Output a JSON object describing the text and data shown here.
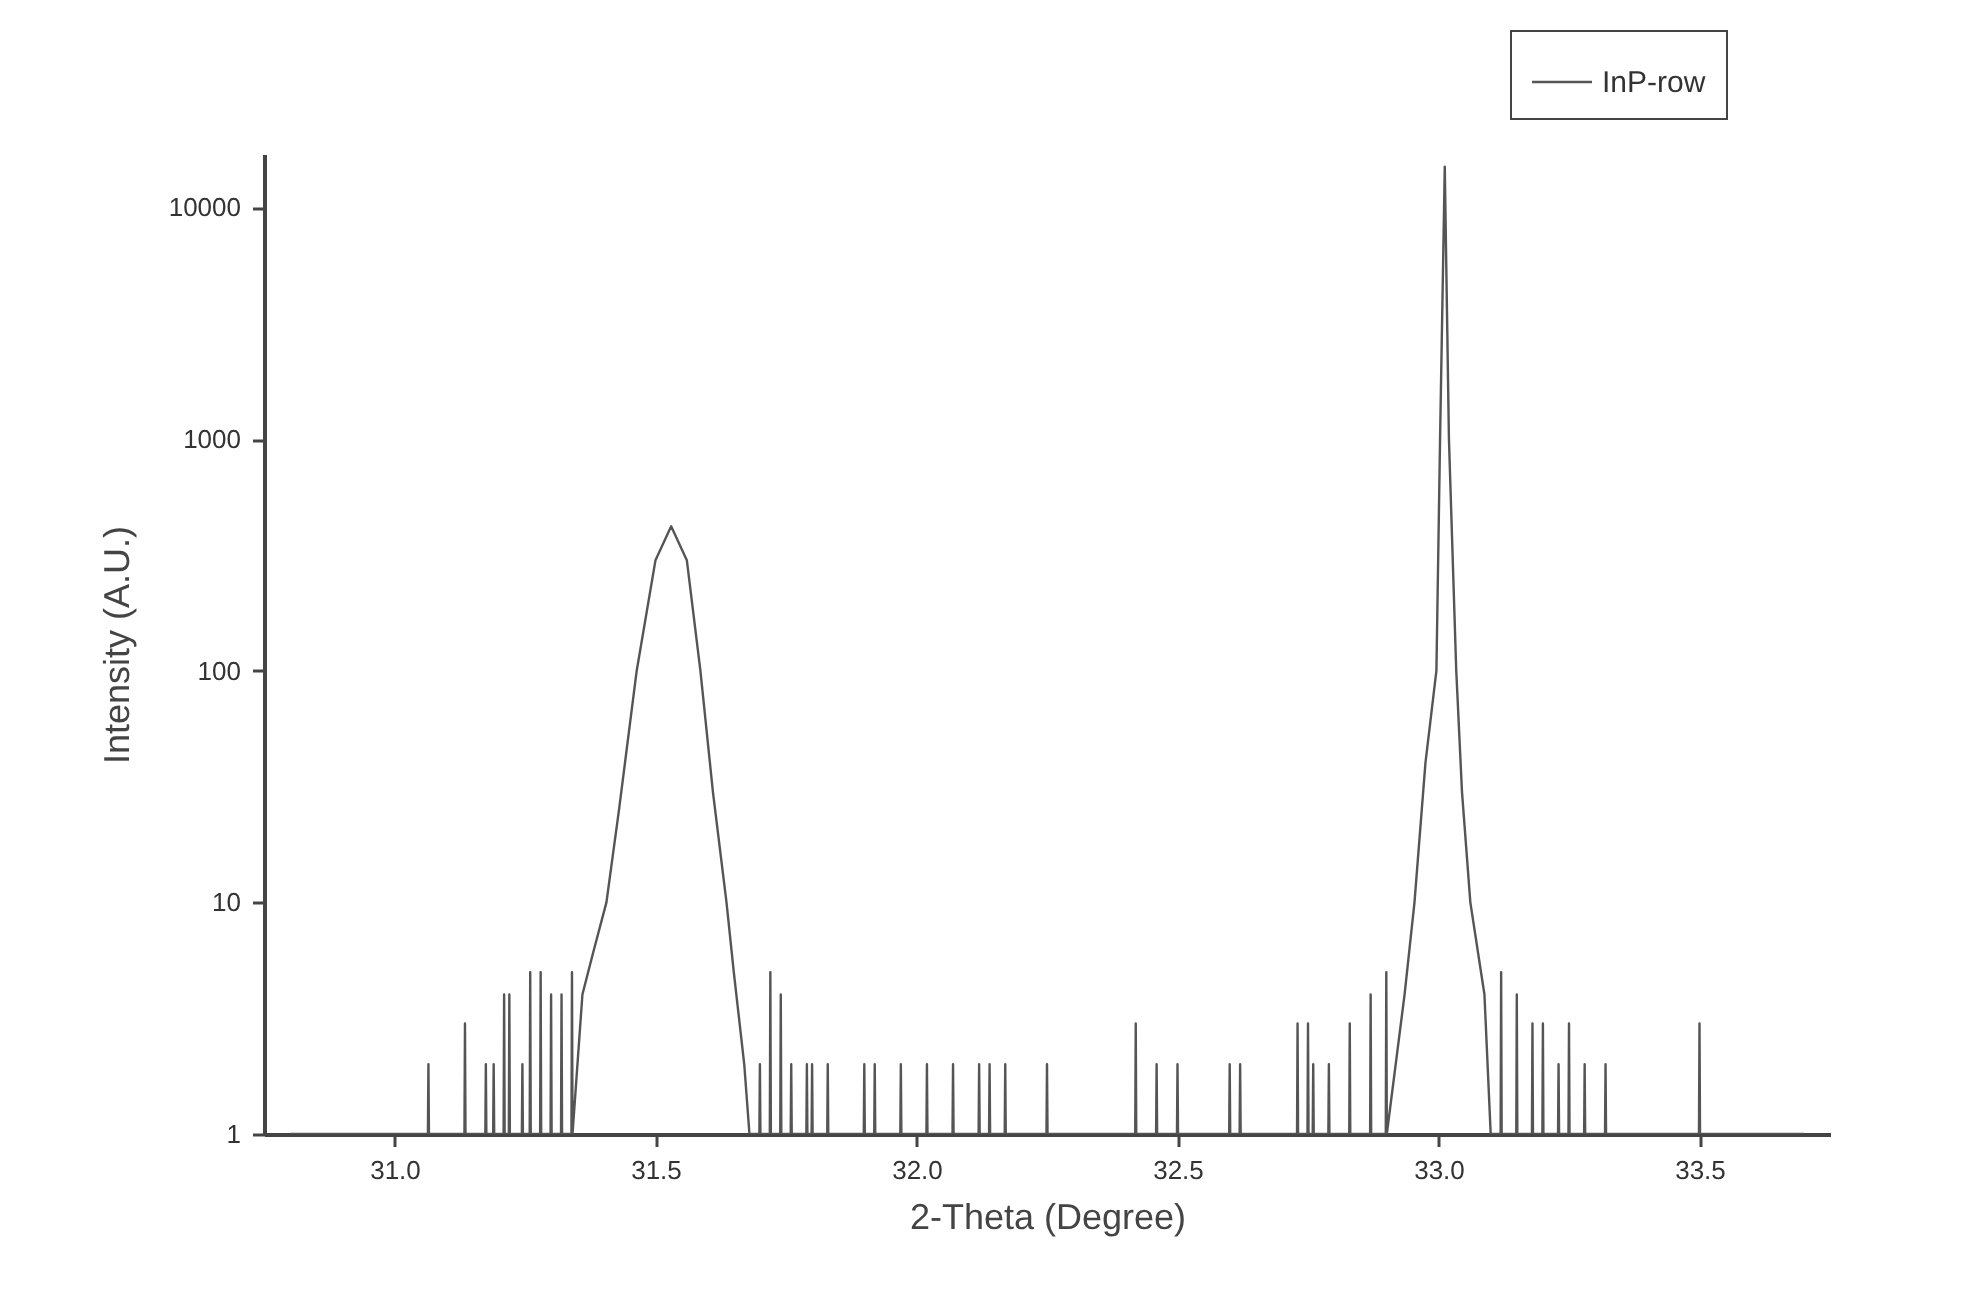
{
  "chart_data": {
    "type": "line",
    "xlabel": "2-Theta (Degree)",
    "ylabel": "Intensity (A.U.)",
    "log": "y",
    "grid": false,
    "legend": "top right",
    "line_style": "solid",
    "marker": "none",
    "xlim": [
      30.75,
      33.75
    ],
    "xticks": [
      {
        "value": 31,
        "label": "31.0"
      },
      31.5,
      {
        "value": 32,
        "label": "32.0"
      },
      32.5,
      {
        "value": 33,
        "label": "33.0"
      },
      33.5
    ],
    "ylim": [
      1,
      17000
    ],
    "yticks": [
      1,
      10,
      100,
      1000,
      10000
    ],
    "x": [
      30.8,
      31.064,
      31.065,
      31.066,
      31.134,
      31.135,
      31.136,
      31.174,
      31.175,
      31.176,
      31.189,
      31.19,
      31.191,
      31.209,
      31.21,
      31.211,
      31.219,
      31.22,
      31.221,
      31.244,
      31.245,
      31.246,
      31.259,
      31.26,
      31.261,
      31.279,
      31.28,
      31.281,
      31.299,
      31.3,
      31.301,
      31.319,
      31.32,
      31.321,
      31.339,
      31.34,
      31.341,
      31.36,
      31.38,
      31.406,
      31.43,
      31.464,
      31.5,
      31.53,
      31.56,
      31.586,
      31.61,
      31.636,
      31.65,
      31.67,
      31.68,
      31.699,
      31.7,
      31.701,
      31.719,
      31.72,
      31.721,
      31.739,
      31.74,
      31.741,
      31.759,
      31.76,
      31.761,
      31.789,
      31.79,
      31.791,
      31.799,
      31.8,
      31.801,
      31.829,
      31.83,
      31.831,
      31.899,
      31.9,
      31.901,
      31.919,
      31.92,
      31.921,
      31.969,
      31.97,
      31.971,
      32.019,
      32.02,
      32.021,
      32.069,
      32.07,
      32.071,
      32.119,
      32.12,
      32.121,
      32.139,
      32.14,
      32.141,
      32.169,
      32.17,
      32.171,
      32.249,
      32.25,
      32.251,
      32.419,
      32.42,
      32.421,
      32.459,
      32.46,
      32.461,
      32.499,
      32.5,
      32.501,
      32.599,
      32.6,
      32.601,
      32.619,
      32.62,
      32.621,
      32.729,
      32.73,
      32.731,
      32.749,
      32.75,
      32.751,
      32.759,
      32.76,
      32.761,
      32.789,
      32.79,
      32.791,
      32.829,
      32.83,
      32.831,
      32.869,
      32.87,
      32.871,
      32.899,
      32.9,
      32.901,
      32.935,
      32.954,
      32.975,
      32.996,
      33.003,
      33.012,
      33.02,
      33.034,
      33.045,
      33.061,
      33.088,
      33.1,
      33.119,
      33.12,
      33.121,
      33.149,
      33.15,
      33.151,
      33.179,
      33.18,
      33.181,
      33.199,
      33.2,
      33.201,
      33.229,
      33.23,
      33.231,
      33.249,
      33.25,
      33.251,
      33.279,
      33.28,
      33.281,
      33.319,
      33.32,
      33.321,
      33.499,
      33.5,
      33.501,
      33.7
    ],
    "series": [
      {
        "name": "InP-row",
        "color": "#555555",
        "values": [
          1,
          1,
          2,
          1,
          1,
          3,
          1,
          1,
          2,
          1,
          1,
          2,
          1,
          1,
          4,
          1,
          1,
          4,
          1,
          1,
          2,
          1,
          1,
          5,
          1,
          1,
          5,
          1,
          1,
          4,
          1,
          1,
          4,
          1,
          1,
          5,
          1,
          4,
          6,
          10,
          25,
          100,
          300,
          420,
          300,
          100,
          30,
          10,
          5,
          2,
          1,
          1,
          2,
          1,
          1,
          5,
          1,
          1,
          4,
          1,
          1,
          2,
          1,
          1,
          2,
          1,
          1,
          2,
          1,
          1,
          2,
          1,
          1,
          2,
          1,
          1,
          2,
          1,
          1,
          2,
          1,
          1,
          2,
          1,
          1,
          2,
          1,
          1,
          2,
          1,
          1,
          2,
          1,
          1,
          2,
          1,
          1,
          2,
          1,
          1,
          3,
          1,
          1,
          2,
          1,
          1,
          2,
          1,
          1,
          2,
          1,
          1,
          2,
          1,
          1,
          3,
          1,
          1,
          3,
          1,
          1,
          2,
          1,
          1,
          2,
          1,
          1,
          3,
          1,
          1,
          4,
          1,
          1,
          5,
          1,
          4,
          10,
          40,
          100,
          1000,
          15000,
          1000,
          100,
          30,
          10,
          4,
          1,
          1,
          5,
          1,
          1,
          4,
          1,
          1,
          3,
          1,
          1,
          3,
          1,
          1,
          2,
          1,
          1,
          3,
          1,
          1,
          2,
          1,
          1,
          2,
          1,
          1,
          3,
          1,
          1
        ]
      }
    ]
  }
}
